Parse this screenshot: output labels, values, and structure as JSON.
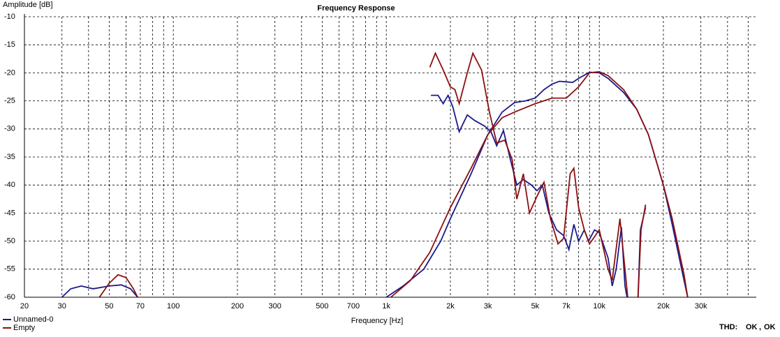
{
  "chart_data": {
    "type": "line",
    "title": "Frequency Response",
    "y_label": "Amplitude [dB]",
    "x_label": "Frequency [Hz]",
    "x_scale": "log",
    "xlim": [
      20,
      54580
    ],
    "ylim": [
      -60,
      -10
    ],
    "xticks": [
      20,
      30,
      50,
      70,
      100,
      200,
      300,
      500,
      700,
      {
        "value": 1000,
        "label": "1k"
      },
      {
        "value": 2000,
        "label": "2k"
      },
      {
        "value": 3000,
        "label": "3k"
      },
      {
        "value": 5000,
        "label": "5k"
      },
      {
        "value": 7000,
        "label": "7k"
      },
      {
        "value": 10000,
        "label": "10k"
      },
      {
        "value": 20000,
        "label": "20k"
      },
      {
        "value": 30000,
        "label": "30k"
      }
    ],
    "yticks": [
      -10,
      -15,
      -20,
      -25,
      -30,
      -35,
      -40,
      -45,
      -50,
      -55,
      -60
    ],
    "xgrid": [
      20,
      30,
      40,
      50,
      60,
      70,
      80,
      90,
      100,
      200,
      300,
      400,
      500,
      600,
      700,
      800,
      900,
      1000,
      2000,
      3000,
      4000,
      5000,
      6000,
      7000,
      8000,
      9000,
      10000,
      20000,
      30000,
      40000,
      50000
    ],
    "grid": true,
    "legend": "bottom-left",
    "thd_label": "THD:",
    "thd_status": [
      "OK",
      "OK"
    ],
    "series": [
      {
        "name": "Unnamed-0",
        "color": "#1a1a8c",
        "curves": [
          {
            "x": [
              30,
              33,
              37,
              42,
              50,
              57,
              63,
              68,
              300,
              1000,
              1200,
              1500,
              1800,
              2000,
              2500,
              3000,
              3500,
              4000,
              4500,
              5000,
              5500,
              6000,
              6500,
              7000,
              7500,
              8000,
              9000,
              10000,
              11000,
              13000,
              15000,
              17000,
              20000,
              22000,
              25000,
              26000
            ],
            "values": [
              -60,
              -58.5,
              -58,
              -58.5,
              -58,
              -57.8,
              -58.5,
              -60,
              null,
              -60,
              -58,
              -55,
              -50,
              -46,
              -38,
              -31,
              -27,
              -25.3,
              -25,
              -24.5,
              -23,
              -22,
              -21.5,
              -21.6,
              -21.7,
              -21,
              -19.9,
              -20,
              -21,
              -23.5,
              -26.5,
              -31,
              -40,
              -47,
              -57,
              -60
            ]
          },
          {
            "x": [
              1620,
              1750,
              1850,
              1950,
              2050,
              2200,
              2400,
              2600,
              2900,
              3100,
              3300,
              3550,
              3800,
              4100,
              4400,
              4800,
              5100,
              5400,
              5800,
              6300,
              6800,
              7200,
              7600,
              8000,
              8500,
              8900,
              9500,
              10000,
              11000,
              11500,
              12000,
              12700,
              13200,
              13500,
              14500,
              15200,
              15600,
              16500
            ],
            "values": [
              -24,
              -24,
              -25.5,
              -24,
              -26,
              -30.5,
              -27.5,
              -28.5,
              -29.5,
              -30.5,
              -33,
              -30.3,
              -35,
              -40,
              -39,
              -40,
              -41,
              -40,
              -45,
              -48,
              -49,
              -51.5,
              -47,
              -50,
              -48,
              -50,
              -48,
              -48.5,
              -53,
              -58,
              -55,
              -47.5,
              -58,
              -60,
              null,
              -60,
              -48,
              -44
            ]
          }
        ]
      },
      {
        "name": "Empty",
        "color": "#8c1010",
        "curves": [
          {
            "x": [
              45,
              50,
              55,
              60,
              65,
              68,
              300,
              1050,
              1300,
              1600,
              2000,
              2500,
              3000,
              3500,
              4000,
              5000,
              6000,
              7000,
              8000,
              9000,
              10000,
              11000,
              13000,
              15000,
              17000,
              20000,
              22000,
              25000,
              26000
            ],
            "values": [
              -60,
              -57.5,
              -56,
              -56.5,
              -58.5,
              -60,
              null,
              -60,
              -57,
              -52,
              -44,
              -37,
              -31,
              -28,
              -27,
              -25.5,
              -24.5,
              -24.5,
              -22.5,
              -20,
              -19.8,
              -20.5,
              -23,
              -26.5,
              -31,
              -40,
              -46,
              -56,
              -60
            ]
          },
          {
            "x": [
              1600,
              1700,
              1850,
              2000,
              2100,
              2200,
              2400,
              2550,
              2800,
              3050,
              3300,
              3600,
              3900,
              4100,
              4400,
              4700,
              5100,
              5500,
              5900,
              6400,
              6800,
              7300,
              7600,
              8000,
              8500,
              9000,
              10000,
              11000,
              11500,
              12500,
              13200,
              13600,
              14500,
              15200,
              15700,
              16500
            ],
            "values": [
              -19,
              -16.5,
              -19.5,
              -22.5,
              -23,
              -25.5,
              -20,
              -16.5,
              -19.5,
              -27,
              -32.5,
              -32,
              -35.5,
              -42.5,
              -38,
              -45,
              -42,
              -39.5,
              -46,
              -50.5,
              -49.5,
              -38,
              -37,
              -44,
              -48,
              -50.5,
              -48,
              -55,
              -57,
              -46,
              -55,
              -60,
              null,
              -60,
              -48,
              -43.5
            ]
          }
        ]
      }
    ]
  }
}
